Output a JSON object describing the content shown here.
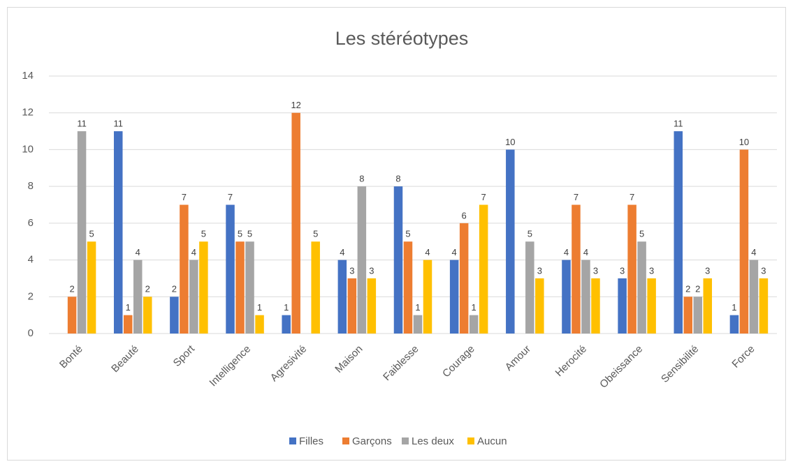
{
  "chart_data": {
    "type": "bar",
    "title": "Les stéréotypes",
    "categories": [
      "Bonté",
      "Beauté",
      "Sport",
      "Intelligence",
      "Agresivité",
      "Maison",
      "Faiblesse",
      "Courage",
      "Amour",
      "Herocité",
      "Obeissance",
      "Sensibilité",
      "Force"
    ],
    "series": [
      {
        "name": "Filles",
        "color": "#4472c4",
        "values": [
          null,
          11,
          2,
          7,
          1,
          4,
          8,
          4,
          10,
          4,
          3,
          11,
          1
        ]
      },
      {
        "name": "Garçons",
        "color": "#ed7d31",
        "values": [
          2,
          1,
          7,
          5,
          12,
          3,
          5,
          6,
          null,
          7,
          7,
          2,
          10
        ]
      },
      {
        "name": "Les deux",
        "color": "#a5a5a5",
        "values": [
          11,
          4,
          4,
          5,
          null,
          8,
          1,
          1,
          5,
          4,
          5,
          2,
          4
        ]
      },
      {
        "name": "Aucun",
        "color": "#ffc000",
        "values": [
          5,
          2,
          5,
          1,
          5,
          3,
          4,
          7,
          3,
          3,
          3,
          3,
          3
        ]
      }
    ],
    "ylim": [
      0,
      14
    ],
    "yticks": [
      0,
      2,
      4,
      6,
      8,
      10,
      12,
      14
    ],
    "grid": true,
    "legend": "bottom"
  }
}
